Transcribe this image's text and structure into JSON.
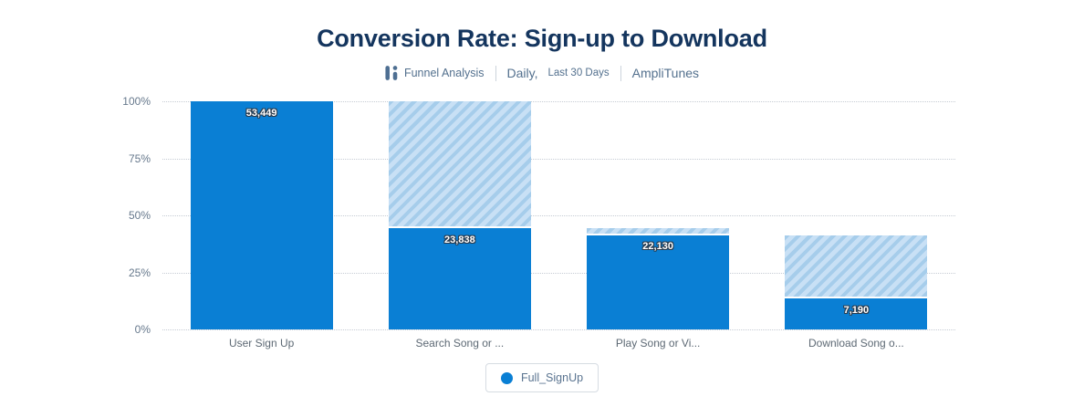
{
  "header": {
    "title": "Conversion Rate: Sign-up to Download",
    "chart_type_label": "Funnel Analysis",
    "period_primary": "Daily,",
    "period_secondary": "Last 30 Days",
    "project_label": "AmpliTunes"
  },
  "legend": {
    "label": "Full_SignUp",
    "position": "bottom"
  },
  "colors": {
    "bar_solid": "#0a7fd4",
    "hatch_dark": "#a6cdeb",
    "hatch_light": "#c8e0f5",
    "title_text": "#14355e",
    "subtitle_text": "#53708e",
    "axis_text": "#66788c",
    "gridline": "#c6ccd4"
  },
  "chart_data": {
    "type": "bar",
    "subtype": "funnel",
    "title": "Conversion Rate: Sign-up to Download",
    "categories": [
      "User Sign Up",
      "Search Song or ...",
      "Play Song or Vi...",
      "Download Song o..."
    ],
    "values": [
      53449,
      23838,
      22130,
      7190
    ],
    "value_labels": [
      "53,449",
      "23,838",
      "22,130",
      "7,190"
    ],
    "series": [
      {
        "name": "Full_SignUp",
        "values": [
          53449,
          23838,
          22130,
          7190
        ]
      }
    ],
    "baseline_value": 53449,
    "y_ticks": [
      "100%",
      "75%",
      "50%",
      "25%",
      "0%"
    ],
    "ylim": [
      0,
      100
    ],
    "xlabel": "",
    "ylabel": "",
    "grid": "horizontal-dotted",
    "legend_position": "bottom"
  }
}
